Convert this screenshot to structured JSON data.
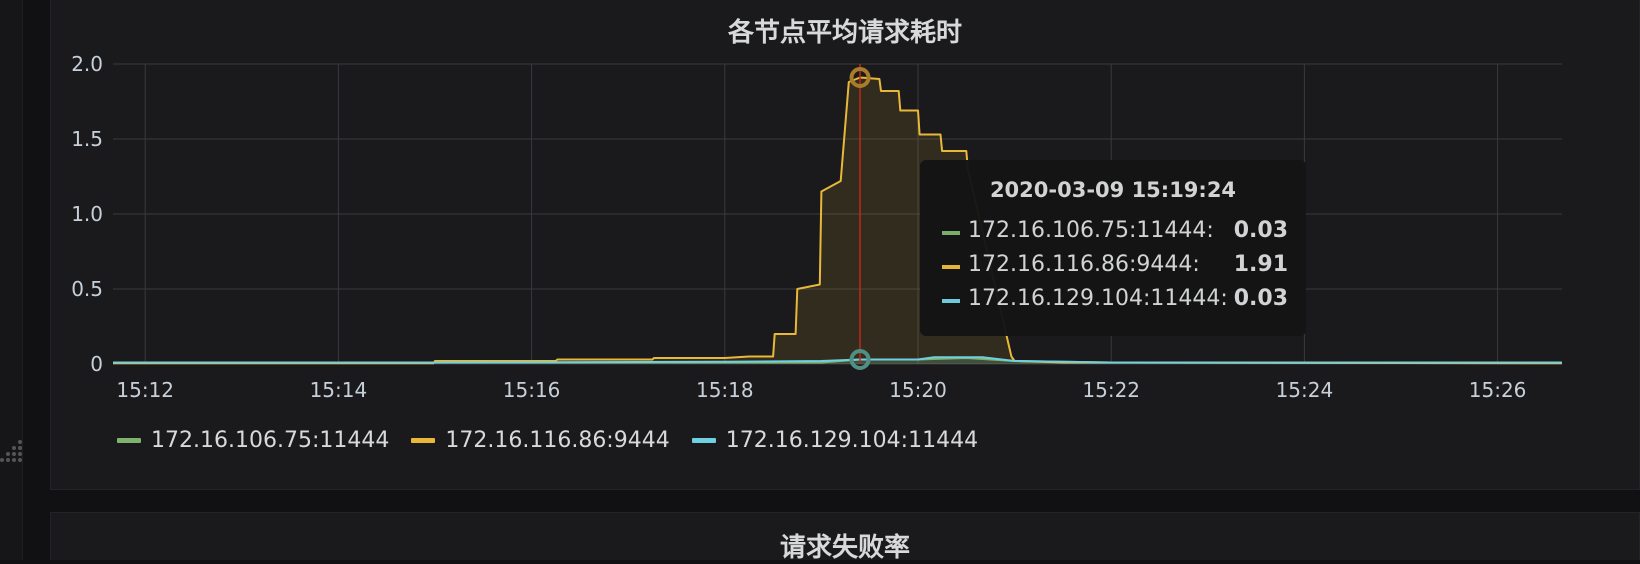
{
  "panel_top": {
    "title": "各节点平均请求耗时"
  },
  "panel_bottom": {
    "title": "请求失败率"
  },
  "colors": {
    "green": "#7eb26d",
    "orange": "#eab839",
    "cyan": "#6ed0e0",
    "cursor": "#c0281c",
    "grid": "#3a3a3e"
  },
  "tooltip": {
    "time": "2020-03-09 15:19:24",
    "rows": [
      {
        "label": "172.16.106.75:11444:",
        "value": "0.03"
      },
      {
        "label": "172.16.116.86:9444:",
        "value": "1.91"
      },
      {
        "label": "172.16.129.104:11444:",
        "value": "0.03"
      }
    ]
  },
  "chart_data": {
    "type": "line",
    "title": "各节点平均请求耗时",
    "xlabel": "",
    "ylabel": "",
    "x_ticks": [
      "15:12",
      "15:14",
      "15:16",
      "15:18",
      "15:20",
      "15:22",
      "15:24",
      "15:26"
    ],
    "y_ticks": [
      "0",
      "0.5",
      "1.0",
      "1.5",
      "2.0"
    ],
    "xlim": [
      "15:11:40",
      "15:26:40"
    ],
    "ylim": [
      0,
      2.0
    ],
    "grid": true,
    "legend_position": "bottom-left",
    "series": [
      {
        "name": "172.16.106.75:11444",
        "color": "#7eb26d",
        "points": [
          [
            "15:11:40",
            0.01
          ],
          [
            "15:15:00",
            0.01
          ],
          [
            "15:18:00",
            0.01
          ],
          [
            "15:19:00",
            0.01
          ],
          [
            "15:19:24",
            0.03
          ],
          [
            "15:20:00",
            0.03
          ],
          [
            "15:20:30",
            0.04
          ],
          [
            "15:21:00",
            0.02
          ],
          [
            "15:22:00",
            0.01
          ],
          [
            "15:26:40",
            0.01
          ]
        ]
      },
      {
        "name": "172.16.116.86:9444",
        "color": "#eab839",
        "points": [
          [
            "15:11:40",
            0.005
          ],
          [
            "15:14:59",
            0.005
          ],
          [
            "15:15:00",
            0.02
          ],
          [
            "15:16:15",
            0.02
          ],
          [
            "15:16:16",
            0.03
          ],
          [
            "15:17:15",
            0.03
          ],
          [
            "15:17:16",
            0.04
          ],
          [
            "15:18:00",
            0.04
          ],
          [
            "15:18:15",
            0.05
          ],
          [
            "15:18:30",
            0.05
          ],
          [
            "15:18:31",
            0.2
          ],
          [
            "15:18:44",
            0.2
          ],
          [
            "15:18:45",
            0.5
          ],
          [
            "15:18:59",
            0.53
          ],
          [
            "15:19:00",
            1.15
          ],
          [
            "15:19:12",
            1.22
          ],
          [
            "15:19:17",
            1.88
          ],
          [
            "15:19:24",
            1.91
          ],
          [
            "15:19:36",
            1.9
          ],
          [
            "15:19:37",
            1.82
          ],
          [
            "15:19:48",
            1.82
          ],
          [
            "15:19:49",
            1.69
          ],
          [
            "15:20:00",
            1.69
          ],
          [
            "15:20:01",
            1.53
          ],
          [
            "15:20:14",
            1.53
          ],
          [
            "15:20:15",
            1.42
          ],
          [
            "15:20:30",
            1.42
          ],
          [
            "15:20:31",
            1.3
          ],
          [
            "15:20:58",
            0.05
          ],
          [
            "15:21:00",
            0.02
          ],
          [
            "15:21:30",
            0.01
          ],
          [
            "15:26:40",
            0.005
          ]
        ]
      },
      {
        "name": "172.16.129.104:11444",
        "color": "#6ed0e0",
        "points": [
          [
            "15:11:40",
            0.01
          ],
          [
            "15:15:00",
            0.01
          ],
          [
            "15:18:00",
            0.015
          ],
          [
            "15:19:00",
            0.02
          ],
          [
            "15:19:24",
            0.03
          ],
          [
            "15:20:00",
            0.03
          ],
          [
            "15:20:10",
            0.045
          ],
          [
            "15:20:40",
            0.045
          ],
          [
            "15:21:00",
            0.02
          ],
          [
            "15:22:00",
            0.01
          ],
          [
            "15:26:40",
            0.01
          ]
        ]
      }
    ],
    "hover": {
      "x": "15:19:24"
    }
  }
}
